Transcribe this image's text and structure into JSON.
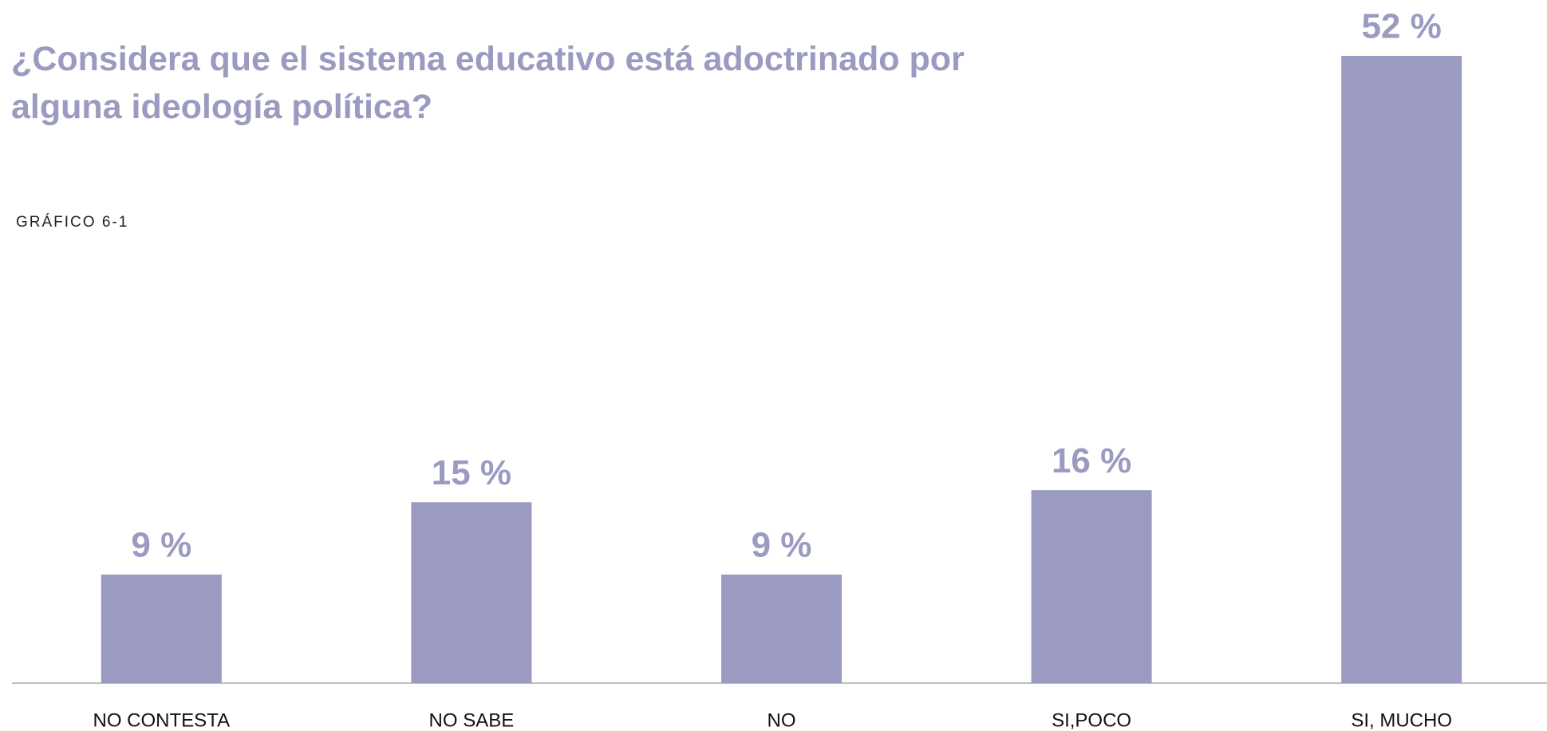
{
  "chart_data": {
    "type": "bar",
    "title": "¿Considera que el sistema educativo está adoctrinado por alguna ideología política?",
    "subtitle": "GRÁFICO 6-1",
    "categories": [
      "NO CONTESTA",
      "NO SABE",
      "NO",
      "SI,POCO",
      "SI, MUCHO"
    ],
    "values": [
      9,
      15,
      9,
      16,
      52
    ],
    "value_labels": [
      "9 %",
      "15 %",
      "9 %",
      "16 %",
      "52 %"
    ],
    "color": "#9b9bc1"
  }
}
